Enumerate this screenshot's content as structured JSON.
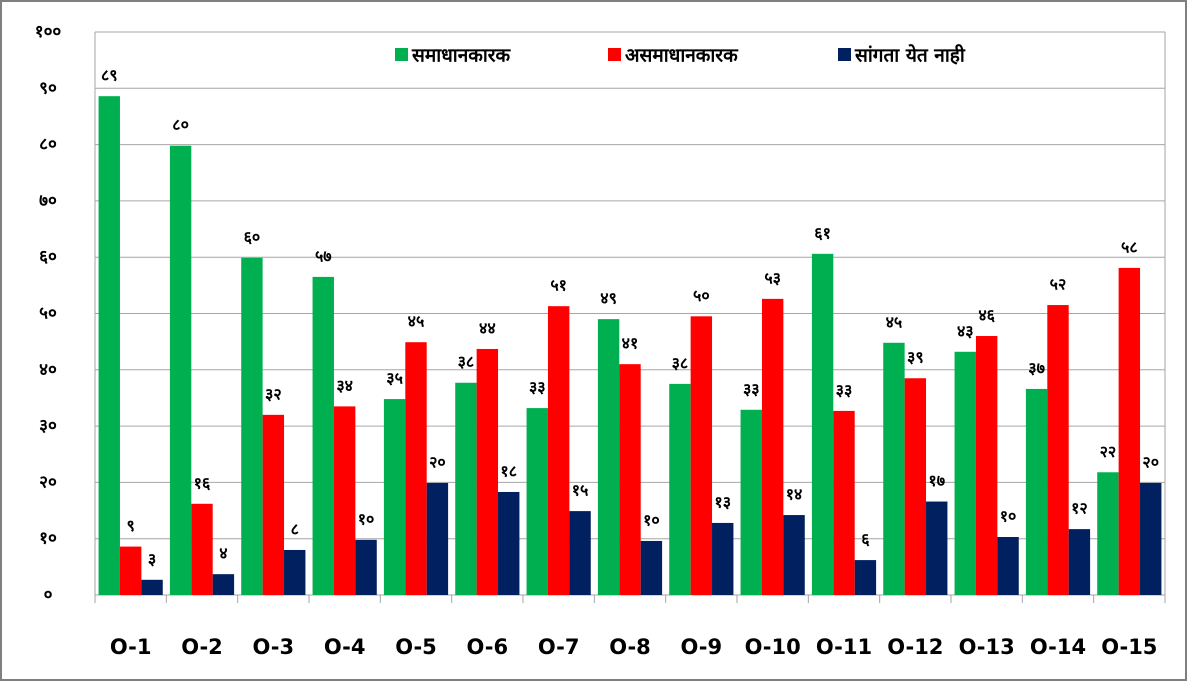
{
  "chart_data": {
    "type": "bar",
    "categories": [
      "O-1",
      "O-2",
      "O-3",
      "O-4",
      "O-5",
      "O-6",
      "O-7",
      "O-8",
      "O-9",
      "O-10",
      "O-11",
      "O-12",
      "O-13",
      "O-14",
      "O-15"
    ],
    "series": [
      {
        "name": "समाधानकारक",
        "color": "#00b050",
        "values": [
          88.6,
          79.8,
          59.9,
          56.5,
          34.8,
          37.7,
          33.2,
          49.0,
          37.5,
          32.9,
          60.6,
          44.8,
          43.2,
          36.6,
          21.8
        ],
        "value_labels": [
          "८९",
          "८०",
          "६०",
          "५७",
          "३५",
          "३८",
          "३३",
          "४९",
          "३८",
          "३३",
          "६१",
          "४५",
          "४३",
          "३७",
          "२२"
        ]
      },
      {
        "name": "असमाधानकारक",
        "color": "#ff0000",
        "values": [
          8.6,
          16.2,
          32.0,
          33.5,
          44.9,
          43.7,
          51.3,
          41.0,
          49.5,
          52.6,
          32.7,
          38.5,
          46.0,
          51.5,
          58.1
        ],
        "value_labels": [
          "९",
          "१६",
          "३२",
          "३४",
          "४५",
          "४४",
          "५१",
          "४१",
          "५०",
          "५३",
          "३३",
          "३९",
          "४६",
          "५२",
          "५८"
        ]
      },
      {
        "name": "सांगता येत नाही",
        "color": "#002060",
        "values": [
          2.7,
          3.7,
          8.0,
          9.8,
          19.9,
          18.3,
          14.9,
          9.6,
          12.8,
          14.2,
          6.2,
          16.6,
          10.3,
          11.7,
          19.9
        ],
        "value_labels": [
          "३",
          "४",
          "८",
          "१०",
          "२०",
          "१८",
          "१५",
          "१०",
          "१३",
          "१४",
          "६",
          "१७",
          "१०",
          "१२",
          "२०"
        ]
      }
    ],
    "ylim": [
      0,
      100
    ],
    "yticks": [
      {
        "value": 0,
        "label": "०"
      },
      {
        "value": 10,
        "label": "१०"
      },
      {
        "value": 20,
        "label": "२०"
      },
      {
        "value": 30,
        "label": "३०"
      },
      {
        "value": 40,
        "label": "४०"
      },
      {
        "value": 50,
        "label": "५०"
      },
      {
        "value": 60,
        "label": "६०"
      },
      {
        "value": 70,
        "label": "७०"
      },
      {
        "value": 80,
        "label": "८०"
      },
      {
        "value": 90,
        "label": "९०"
      },
      {
        "value": 100,
        "label": "१००"
      }
    ],
    "grid": true,
    "legend": "top"
  }
}
